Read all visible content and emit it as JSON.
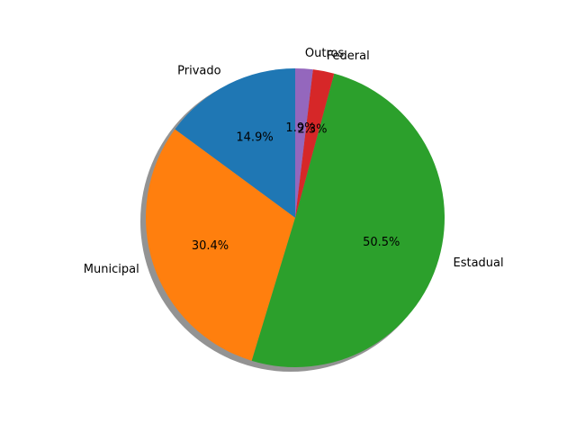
{
  "chart_data": {
    "type": "pie",
    "shadow": true,
    "slices": [
      {
        "label": "Privado",
        "value": 14.9,
        "pct_label": "14.9%",
        "color": "#1f77b4"
      },
      {
        "label": "Municipal",
        "value": 30.4,
        "pct_label": "30.4%",
        "color": "#ff7f0e"
      },
      {
        "label": "Estadual",
        "value": 50.5,
        "pct_label": "50.5%",
        "color": "#2ca02c"
      },
      {
        "label": "Federal",
        "value": 2.3,
        "pct_label": "2.3%",
        "color": "#d62728"
      },
      {
        "label": "Outros",
        "value": 1.9,
        "pct_label": "1.9%",
        "color": "#9467bd"
      }
    ]
  }
}
